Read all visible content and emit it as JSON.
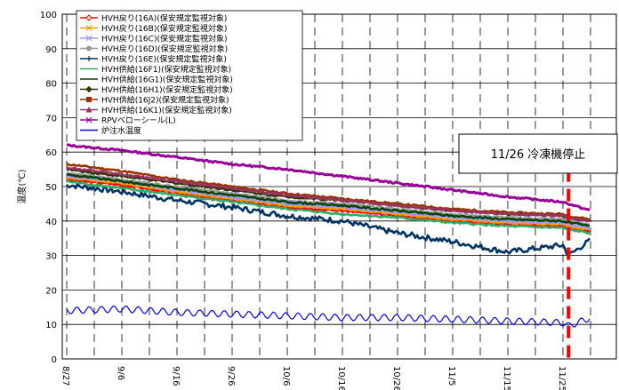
{
  "chart_data": {
    "type": "line",
    "title": "",
    "xlabel": "",
    "ylabel": "温度(℃)",
    "ylim": [
      0,
      100
    ],
    "yticks": [
      "0",
      "10",
      "20",
      "30",
      "40",
      "50",
      "60",
      "70",
      "80",
      "90",
      "100"
    ],
    "xticks": [
      "8/27",
      "9/6",
      "9/16",
      "9/26",
      "10/6",
      "10/16",
      "10/26",
      "11/5",
      "11/15",
      "11/25"
    ],
    "grid": true,
    "legend_position": "top-left",
    "annotation": {
      "text": "11/26 冷凍機停止",
      "x": "11/26",
      "line_color": "#ff0000"
    },
    "series": [
      {
        "name": "HVH戻り(16A)(保安規定監視対象)",
        "color": "#ff0000",
        "marker": "diamond-open",
        "x": [
          "8/27",
          "9/6",
          "9/16",
          "9/26",
          "10/6",
          "10/16",
          "10/26",
          "11/5",
          "11/15",
          "11/25",
          "11/26",
          "11/30"
        ],
        "values": [
          52,
          50.5,
          48,
          46,
          44,
          43,
          41.5,
          40,
          39,
          38.5,
          38,
          37
        ]
      },
      {
        "name": "HVH戻り(16B)(保安規定監視対象)",
        "color": "#ff9900",
        "marker": "x",
        "x": [
          "8/27",
          "9/6",
          "9/16",
          "9/26",
          "10/6",
          "10/16",
          "10/26",
          "11/5",
          "11/15",
          "11/25",
          "11/26",
          "11/30"
        ],
        "values": [
          52.5,
          51,
          48.5,
          46.5,
          44.5,
          43.5,
          42,
          40.5,
          39.5,
          39,
          38.5,
          37.5
        ]
      },
      {
        "name": "HVH戻り(16C)(保安規定監視対象)",
        "color": "#9999ff",
        "marker": "x",
        "x": [
          "8/27",
          "9/6",
          "9/16",
          "9/26",
          "10/6",
          "10/16",
          "10/26",
          "11/5",
          "11/15",
          "11/25",
          "11/26",
          "11/30"
        ],
        "values": [
          53,
          51.5,
          49,
          47,
          45,
          44,
          42.5,
          41,
          40,
          39.5,
          39,
          38
        ]
      },
      {
        "name": "HVH戻り(16D)(保安規定監視対象)",
        "color": "#999999",
        "marker": "circle",
        "x": [
          "8/27",
          "9/6",
          "9/16",
          "9/26",
          "10/6",
          "10/16",
          "10/26",
          "11/5",
          "11/15",
          "11/25",
          "11/26",
          "11/30"
        ],
        "values": [
          54,
          52,
          50,
          48,
          46,
          45,
          43.5,
          42,
          41,
          40.5,
          40,
          39
        ]
      },
      {
        "name": "HVH戻り(16E)(保安規定監視対象)",
        "color": "#003366",
        "marker": "plus",
        "x": [
          "8/27",
          "9/6",
          "9/16",
          "9/26",
          "10/6",
          "10/16",
          "10/26",
          "11/5",
          "11/15",
          "11/25",
          "11/26",
          "11/30"
        ],
        "values": [
          50.5,
          48.5,
          46,
          44,
          41.5,
          40,
          36.5,
          34,
          31,
          33,
          30,
          34.5
        ]
      },
      {
        "name": "HVH供給(16F1)(保安規定監視対象)",
        "color": "#33aa66",
        "marker": "dash",
        "x": [
          "8/27",
          "9/6",
          "9/16",
          "9/26",
          "10/6",
          "10/16",
          "10/26",
          "11/5",
          "11/15",
          "11/25",
          "11/26",
          "11/30"
        ],
        "values": [
          51.5,
          49.5,
          47.5,
          45.5,
          43.5,
          42,
          41,
          39.5,
          38.5,
          38,
          37.5,
          36.5
        ]
      },
      {
        "name": "HVH供給(16G1)(保安規定監視対象)",
        "color": "#004400",
        "marker": "dash",
        "x": [
          "8/27",
          "9/6",
          "9/16",
          "9/26",
          "10/6",
          "10/16",
          "10/26",
          "11/5",
          "11/15",
          "11/25",
          "11/26",
          "11/30"
        ],
        "values": [
          53.5,
          51.5,
          49.5,
          47.5,
          45.5,
          44.5,
          43,
          41.5,
          40.5,
          40,
          39.5,
          38.5
        ]
      },
      {
        "name": "HVH供給(16H1)(保安規定監視対象)",
        "color": "#333300",
        "marker": "diamond",
        "x": [
          "8/27",
          "9/6",
          "9/16",
          "9/26",
          "10/6",
          "10/16",
          "10/26",
          "11/5",
          "11/15",
          "11/25",
          "11/26",
          "11/30"
        ],
        "values": [
          55,
          53,
          51,
          49,
          47,
          46,
          44.5,
          43,
          42,
          41.5,
          41,
          40
        ]
      },
      {
        "name": "HVH供給(16J2)(保安規定監視対象)",
        "color": "#993300",
        "marker": "square",
        "x": [
          "8/27",
          "9/6",
          "9/16",
          "9/26",
          "10/6",
          "10/16",
          "10/26",
          "11/5",
          "11/15",
          "11/25",
          "11/26",
          "11/30"
        ],
        "values": [
          56.5,
          54.5,
          52,
          50,
          48,
          46.5,
          45,
          43.5,
          42.5,
          42,
          41.5,
          40.5
        ]
      },
      {
        "name": "HVH供給(16K1)(保安規定監視対象)",
        "color": "#993366",
        "marker": "triangle",
        "x": [
          "8/27",
          "9/6",
          "9/16",
          "9/26",
          "10/6",
          "10/16",
          "10/26",
          "11/5",
          "11/15",
          "11/25",
          "11/26",
          "11/30"
        ],
        "values": [
          55.5,
          53.5,
          51.5,
          49.5,
          47.5,
          46,
          44.5,
          43,
          42,
          41.5,
          41,
          40
        ]
      },
      {
        "name": "RPVベローシール(L)",
        "color": "#990099",
        "marker": "x",
        "x": [
          "8/27",
          "9/6",
          "9/16",
          "9/26",
          "10/6",
          "10/16",
          "10/26",
          "11/5",
          "11/15",
          "11/25",
          "11/26",
          "11/30"
        ],
        "values": [
          62,
          60.5,
          58.5,
          56.5,
          55,
          53,
          51,
          49,
          47,
          45.5,
          45,
          43
        ]
      },
      {
        "name": "炉注水温度",
        "color": "#0000ff",
        "marker": "none",
        "x": [
          "8/27",
          "9/6",
          "9/16",
          "9/26",
          "10/6",
          "10/16",
          "10/26",
          "11/5",
          "11/15",
          "11/25",
          "11/26",
          "11/30"
        ],
        "values": [
          14,
          14.5,
          13.5,
          13,
          12.5,
          12,
          12,
          11.5,
          11,
          10.5,
          9.5,
          12
        ]
      }
    ]
  }
}
